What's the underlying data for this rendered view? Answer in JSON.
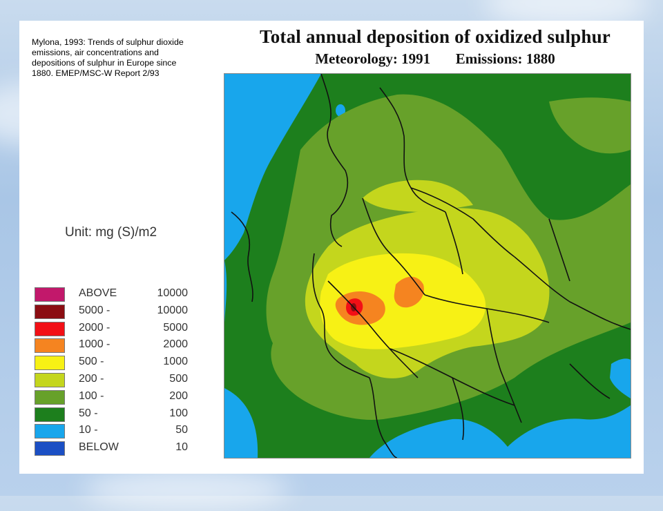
{
  "caption": {
    "lines": [
      "Mylona, 1993: Trends of sulphur dioxide",
      "emissions, air concentrations and",
      "depositions of sulphur in Europe since",
      "1880. EMEP/MSC-W Report 2/93"
    ]
  },
  "title": {
    "line1": "Total annual deposition of oxidized sulphur",
    "meteorology": "Meteorology: 1991",
    "emissions": "Emissions: 1880"
  },
  "legend": {
    "unit": "Unit: mg (S)/m2",
    "items": [
      {
        "low": "ABOVE",
        "high": "10000",
        "color": "#c2186b"
      },
      {
        "low": "5000 -",
        "high": "10000",
        "color": "#8b0d12"
      },
      {
        "low": "2000 -",
        "high": "5000",
        "color": "#f20f16"
      },
      {
        "low": "1000 -",
        "high": "2000",
        "color": "#f58420"
      },
      {
        "low": "500 -",
        "high": "1000",
        "color": "#f7f115"
      },
      {
        "low": "200 -",
        "high": "500",
        "color": "#c4d61d"
      },
      {
        "low": "100 -",
        "high": "200",
        "color": "#67a12a"
      },
      {
        "low": "50 -",
        "high": "100",
        "color": "#1d7f1d"
      },
      {
        "low": "10 -",
        "high": "50",
        "color": "#18a6ec"
      },
      {
        "low": "BELOW",
        "high": "10",
        "color": "#1b4fc4"
      }
    ]
  },
  "map": {
    "colors": {
      "sea": "#18a6ec",
      "c50_100": "#1d7f1d",
      "c100_200": "#67a12a",
      "c200_500": "#c4d61d",
      "c500_1000": "#f7f115",
      "c1000_2000": "#f58420",
      "c2000_5000": "#f20f16",
      "c5000_10000": "#8b0d12",
      "borders": "#111111"
    }
  }
}
